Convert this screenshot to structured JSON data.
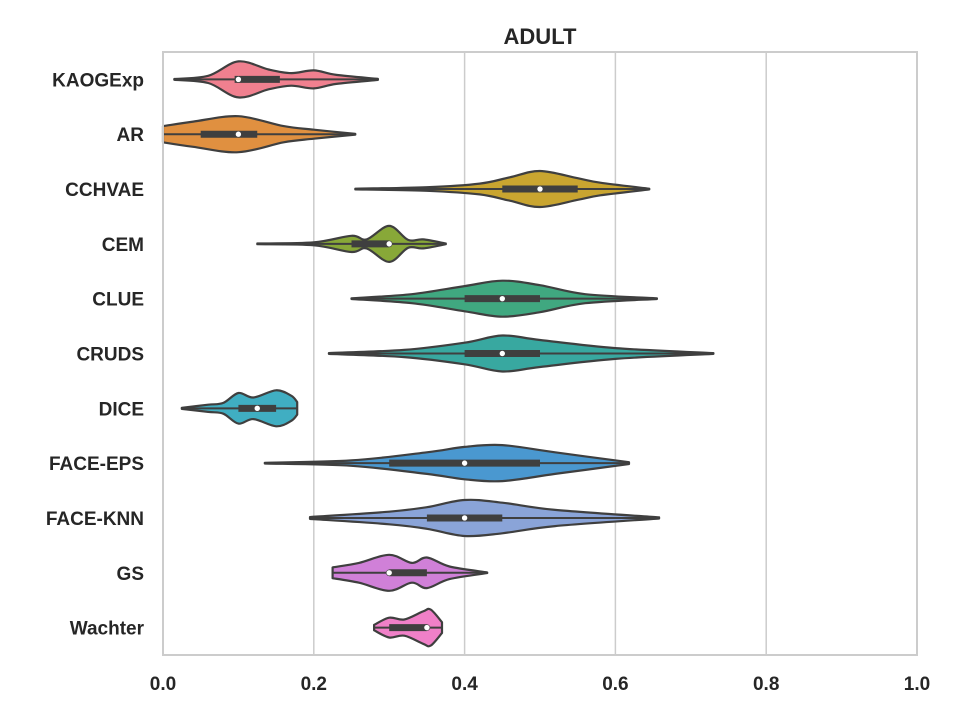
{
  "chart_data": {
    "type": "violin",
    "orientation": "horizontal",
    "title": "ADULT",
    "xlabel": "",
    "ylabel": "",
    "xlim": [
      0.0,
      1.0
    ],
    "x_ticks": [
      "0.0",
      "0.2",
      "0.4",
      "0.6",
      "0.8",
      "1.0"
    ],
    "x_tick_values": [
      0.0,
      0.2,
      0.4,
      0.6,
      0.8,
      1.0
    ],
    "grid": "vertical",
    "categories": [
      "KAOGExp",
      "AR",
      "CCHVAE",
      "CEM",
      "CLUE",
      "CRUDS",
      "DICE",
      "FACE-EPS",
      "FACE-KNN",
      "GS",
      "Wachter"
    ],
    "series": [
      {
        "category": "KAOGExp",
        "color": "#f0808f",
        "min": 0.015,
        "max": 0.285,
        "median": 0.1,
        "q1": 0.095,
        "q3": 0.155,
        "density": [
          [
            0.015,
            0.02
          ],
          [
            0.06,
            0.2
          ],
          [
            0.1,
            1.0
          ],
          [
            0.14,
            0.55
          ],
          [
            0.17,
            0.35
          ],
          [
            0.2,
            0.5
          ],
          [
            0.23,
            0.25
          ],
          [
            0.285,
            0.03
          ]
        ]
      },
      {
        "category": "AR",
        "color": "#e09040",
        "min": 0.0,
        "max": 0.255,
        "median": 0.1,
        "q1": 0.05,
        "q3": 0.125,
        "density": [
          [
            0.0,
            0.45
          ],
          [
            0.04,
            0.7
          ],
          [
            0.1,
            1.0
          ],
          [
            0.16,
            0.45
          ],
          [
            0.2,
            0.25
          ],
          [
            0.255,
            0.02
          ]
        ]
      },
      {
        "category": "CCHVAE",
        "color": "#c9a530",
        "min": 0.255,
        "max": 0.645,
        "median": 0.5,
        "q1": 0.45,
        "q3": 0.55,
        "density": [
          [
            0.255,
            0.02
          ],
          [
            0.35,
            0.1
          ],
          [
            0.42,
            0.3
          ],
          [
            0.46,
            0.65
          ],
          [
            0.5,
            1.0
          ],
          [
            0.55,
            0.6
          ],
          [
            0.58,
            0.35
          ],
          [
            0.645,
            0.02
          ]
        ]
      },
      {
        "category": "CEM",
        "color": "#88a838",
        "min": 0.125,
        "max": 0.375,
        "median": 0.3,
        "q1": 0.25,
        "q3": 0.3,
        "density": [
          [
            0.125,
            0.02
          ],
          [
            0.2,
            0.08
          ],
          [
            0.25,
            0.45
          ],
          [
            0.27,
            0.25
          ],
          [
            0.3,
            1.0
          ],
          [
            0.325,
            0.22
          ],
          [
            0.345,
            0.25
          ],
          [
            0.375,
            0.02
          ]
        ]
      },
      {
        "category": "CLUE",
        "color": "#40a880",
        "min": 0.25,
        "max": 0.655,
        "median": 0.45,
        "q1": 0.4,
        "q3": 0.5,
        "density": [
          [
            0.25,
            0.02
          ],
          [
            0.33,
            0.25
          ],
          [
            0.4,
            0.7
          ],
          [
            0.45,
            1.0
          ],
          [
            0.5,
            0.75
          ],
          [
            0.56,
            0.25
          ],
          [
            0.655,
            0.02
          ]
        ]
      },
      {
        "category": "CRUDS",
        "color": "#38a8a0",
        "min": 0.22,
        "max": 0.73,
        "median": 0.45,
        "q1": 0.4,
        "q3": 0.5,
        "density": [
          [
            0.22,
            0.02
          ],
          [
            0.32,
            0.2
          ],
          [
            0.4,
            0.6
          ],
          [
            0.45,
            1.0
          ],
          [
            0.5,
            0.75
          ],
          [
            0.6,
            0.3
          ],
          [
            0.73,
            0.02
          ]
        ]
      },
      {
        "category": "DICE",
        "color": "#40aec2",
        "min": 0.025,
        "max": 0.178,
        "median": 0.125,
        "q1": 0.1,
        "q3": 0.15,
        "density": [
          [
            0.025,
            0.03
          ],
          [
            0.06,
            0.2
          ],
          [
            0.08,
            0.3
          ],
          [
            0.1,
            0.85
          ],
          [
            0.12,
            0.6
          ],
          [
            0.15,
            1.0
          ],
          [
            0.17,
            0.7
          ],
          [
            0.178,
            0.35
          ]
        ]
      },
      {
        "category": "FACE-EPS",
        "color": "#4a98d0",
        "min": 0.135,
        "max": 0.618,
        "median": 0.4,
        "q1": 0.3,
        "q3": 0.5,
        "density": [
          [
            0.135,
            0.02
          ],
          [
            0.25,
            0.15
          ],
          [
            0.35,
            0.6
          ],
          [
            0.4,
            0.9
          ],
          [
            0.45,
            1.0
          ],
          [
            0.52,
            0.6
          ],
          [
            0.618,
            0.05
          ]
        ]
      },
      {
        "category": "FACE-KNN",
        "color": "#8aa4d8",
        "min": 0.195,
        "max": 0.658,
        "median": 0.4,
        "q1": 0.35,
        "q3": 0.45,
        "density": [
          [
            0.195,
            0.05
          ],
          [
            0.3,
            0.35
          ],
          [
            0.35,
            0.6
          ],
          [
            0.4,
            1.0
          ],
          [
            0.45,
            0.85
          ],
          [
            0.52,
            0.45
          ],
          [
            0.658,
            0.03
          ]
        ]
      },
      {
        "category": "GS",
        "color": "#d080d8",
        "min": 0.225,
        "max": 0.43,
        "median": 0.3,
        "q1": 0.3,
        "q3": 0.35,
        "density": [
          [
            0.225,
            0.3
          ],
          [
            0.26,
            0.55
          ],
          [
            0.3,
            1.0
          ],
          [
            0.33,
            0.55
          ],
          [
            0.35,
            0.85
          ],
          [
            0.38,
            0.35
          ],
          [
            0.43,
            0.02
          ]
        ]
      },
      {
        "category": "Wachter",
        "color": "#f080c8",
        "min": 0.28,
        "max": 0.37,
        "median": 0.35,
        "q1": 0.3,
        "q3": 0.35,
        "density": [
          [
            0.28,
            0.15
          ],
          [
            0.3,
            0.55
          ],
          [
            0.32,
            0.45
          ],
          [
            0.345,
            0.9
          ],
          [
            0.355,
            1.0
          ],
          [
            0.37,
            0.3
          ]
        ]
      }
    ]
  }
}
